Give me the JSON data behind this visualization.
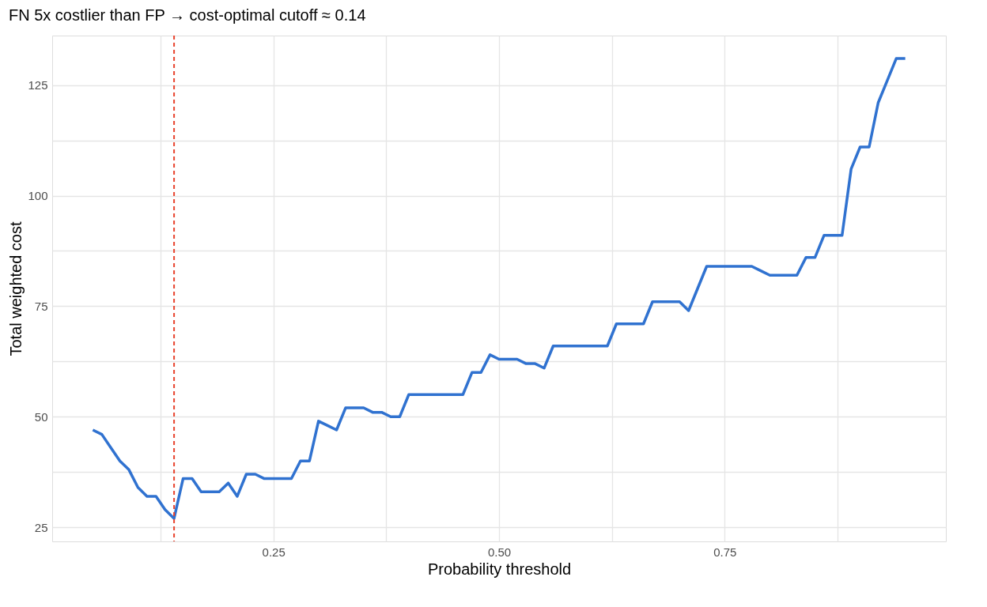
{
  "chart_data": {
    "type": "line",
    "title": "FN 5x costlier than FP → cost-optimal cutoff ≈ 0.14",
    "xlabel": "Probability threshold",
    "ylabel": "Total weighted cost",
    "x": [
      0.05,
      0.06,
      0.07,
      0.08,
      0.09,
      0.1,
      0.11,
      0.12,
      0.13,
      0.14,
      0.15,
      0.16,
      0.17,
      0.18,
      0.19,
      0.2,
      0.21,
      0.22,
      0.23,
      0.24,
      0.25,
      0.26,
      0.27,
      0.28,
      0.29,
      0.3,
      0.31,
      0.32,
      0.33,
      0.34,
      0.35,
      0.36,
      0.37,
      0.38,
      0.39,
      0.4,
      0.41,
      0.42,
      0.43,
      0.44,
      0.45,
      0.46,
      0.47,
      0.48,
      0.49,
      0.5,
      0.51,
      0.52,
      0.53,
      0.54,
      0.55,
      0.56,
      0.57,
      0.58,
      0.59,
      0.6,
      0.61,
      0.62,
      0.63,
      0.64,
      0.65,
      0.66,
      0.67,
      0.68,
      0.69,
      0.7,
      0.71,
      0.72,
      0.73,
      0.74,
      0.75,
      0.76,
      0.77,
      0.78,
      0.79,
      0.8,
      0.81,
      0.82,
      0.83,
      0.84,
      0.85,
      0.86,
      0.87,
      0.88,
      0.89,
      0.9,
      0.91,
      0.92,
      0.93,
      0.94,
      0.95
    ],
    "series": [
      {
        "color": "#3072d0",
        "values": [
          47,
          46,
          43,
          40,
          38,
          34,
          32,
          32,
          29,
          27,
          36,
          36,
          33,
          33,
          33,
          35,
          32,
          37,
          37,
          36,
          36,
          36,
          36,
          40,
          40,
          49,
          48,
          47,
          52,
          52,
          52,
          51,
          51,
          50,
          50,
          55,
          55,
          55,
          55,
          55,
          55,
          55,
          60,
          60,
          64,
          63,
          63,
          63,
          62,
          62,
          61,
          66,
          66,
          66,
          66,
          66,
          66,
          66,
          71,
          71,
          71,
          71,
          76,
          76,
          76,
          76,
          74,
          79,
          84,
          84,
          84,
          84,
          84,
          84,
          83,
          82,
          82,
          82,
          82,
          86,
          86,
          91,
          91,
          91,
          106,
          111,
          111,
          121,
          126,
          131,
          131
        ]
      }
    ],
    "xlim": [
      0.005,
      0.995
    ],
    "ylim": [
      21.8,
      136.2
    ],
    "xticks": [
      {
        "value": 0.125,
        "label": null
      },
      {
        "value": 0.25,
        "label": "0.25"
      },
      {
        "value": 0.375,
        "label": null
      },
      {
        "value": 0.5,
        "label": "0.50"
      },
      {
        "value": 0.625,
        "label": null
      },
      {
        "value": 0.75,
        "label": "0.75"
      },
      {
        "value": 0.875,
        "label": null
      }
    ],
    "yticks": [
      25,
      {
        "value": 37.5,
        "label": null
      },
      50,
      {
        "value": 62.5,
        "label": null
      },
      75,
      {
        "value": 87.5,
        "label": null
      },
      100,
      {
        "value": 112.5,
        "label": null
      },
      125
    ],
    "ref_lines": [
      {
        "axis": "x",
        "value": 0.14,
        "color": "#e8432d",
        "line_style": "dashed"
      }
    ],
    "grid": true,
    "marker": "none",
    "line_style": "solid"
  }
}
